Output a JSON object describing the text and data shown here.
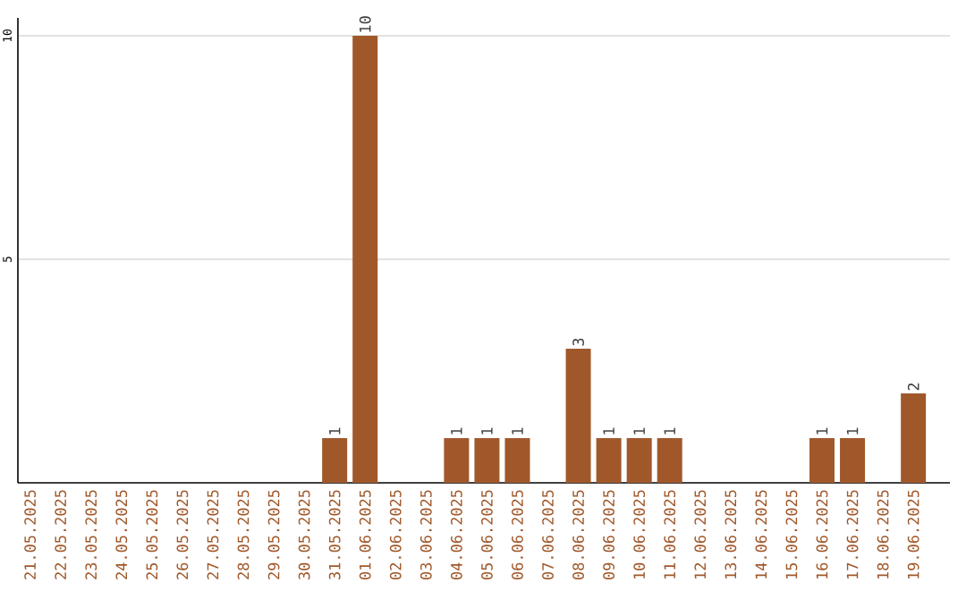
{
  "chart_data": {
    "type": "bar",
    "categories": [
      "21.05.2025",
      "22.05.2025",
      "23.05.2025",
      "24.05.2025",
      "25.05.2025",
      "26.05.2025",
      "27.05.2025",
      "28.05.2025",
      "29.05.2025",
      "30.05.2025",
      "31.05.2025",
      "01.06.2025",
      "02.06.2025",
      "03.06.2025",
      "04.06.2025",
      "05.06.2025",
      "06.06.2025",
      "07.06.2025",
      "08.06.2025",
      "09.06.2025",
      "10.06.2025",
      "11.06.2025",
      "12.06.2025",
      "13.06.2025",
      "14.06.2025",
      "15.06.2025",
      "16.06.2025",
      "17.06.2025",
      "18.06.2025",
      "19.06.2025"
    ],
    "values": [
      0,
      0,
      0,
      0,
      0,
      0,
      0,
      0,
      0,
      0,
      1,
      10,
      0,
      0,
      1,
      1,
      1,
      0,
      3,
      1,
      1,
      1,
      0,
      0,
      0,
      0,
      1,
      1,
      0,
      2
    ],
    "value_labels": [
      null,
      null,
      null,
      null,
      null,
      null,
      null,
      null,
      null,
      null,
      "1",
      "10",
      null,
      null,
      "1",
      "1",
      "1",
      null,
      "3",
      "1",
      "1",
      "1",
      null,
      null,
      null,
      null,
      "1",
      "1",
      null,
      "2"
    ],
    "color": "#a0582a",
    "ylim": [
      0,
      10.4
    ],
    "yticks": [
      5,
      10
    ],
    "grid": "y"
  }
}
